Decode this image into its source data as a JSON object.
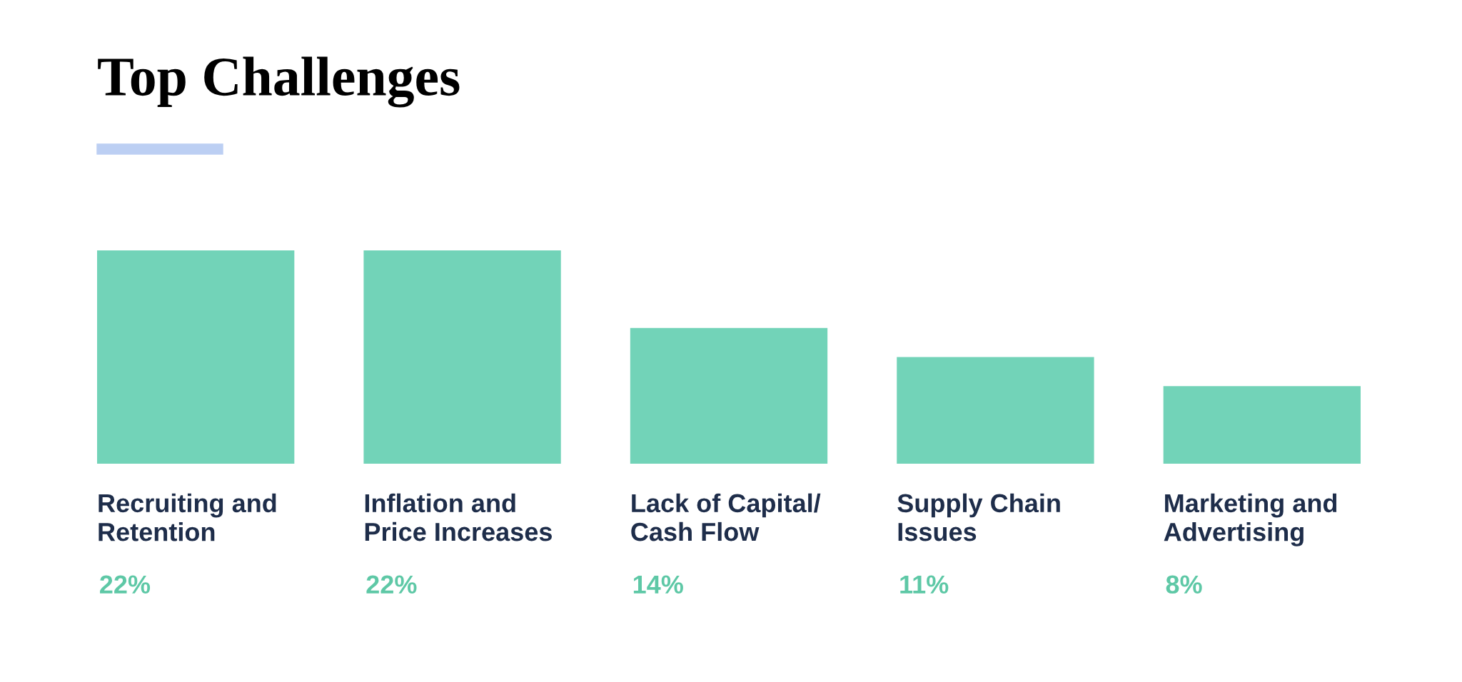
{
  "chart_data": {
    "type": "bar",
    "title": "Top Challenges",
    "categories": [
      "Recruiting and\nRetention",
      "Inflation and\nPrice Increases",
      "Lack of Capital/\nCash Flow",
      "Supply Chain\nIssues",
      "Marketing and\nAdvertising"
    ],
    "values": [
      22,
      22,
      14,
      11,
      8
    ],
    "value_labels": [
      "22%",
      "22%",
      "14%",
      "11%",
      "8%"
    ],
    "color": "#72d3b8"
  }
}
